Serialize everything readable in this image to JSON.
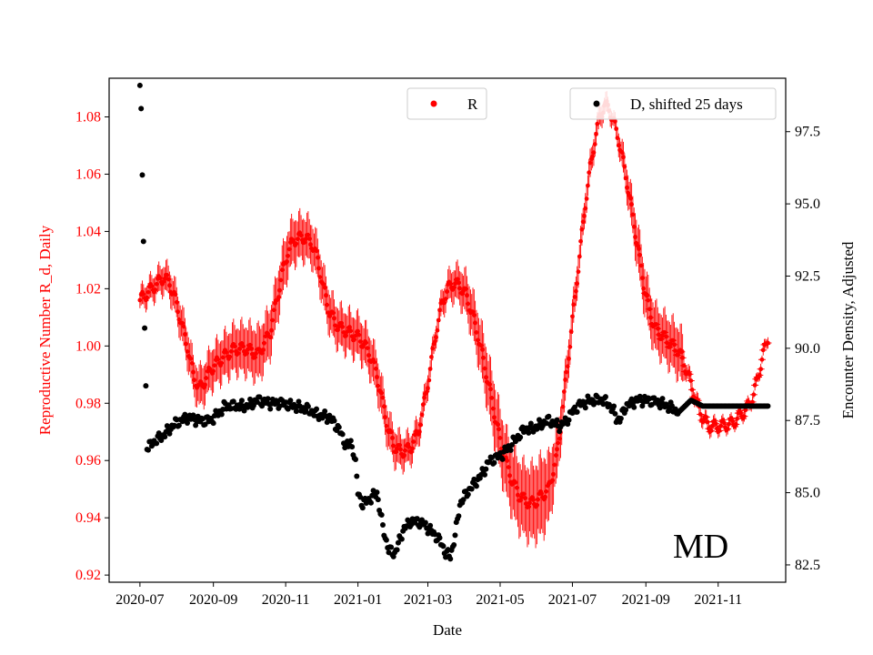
{
  "chart_data": {
    "type": "scatter",
    "title": "",
    "xlabel": "Date",
    "ylabel_left": "Reproductive Number R_d, Daily",
    "ylabel_right": "Encounter Density, Adjusted",
    "annotation": "MD",
    "x_ticks": [
      "2020-07",
      "2020-09",
      "2020-11",
      "2021-01",
      "2021-03",
      "2021-05",
      "2021-07",
      "2021-09",
      "2021-11"
    ],
    "x_tick_days": [
      0,
      62,
      123,
      184,
      243,
      304,
      365,
      427,
      488
    ],
    "x_range_days": [
      -26,
      545
    ],
    "y_left_range": [
      0.9175,
      1.0935
    ],
    "y_left_ticks": [
      "0.92",
      "0.94",
      "0.96",
      "0.98",
      "1.00",
      "1.02",
      "1.04",
      "1.06",
      "1.08"
    ],
    "y_right_range": [
      81.9,
      99.35
    ],
    "y_right_ticks": [
      "82.5",
      "85.0",
      "87.5",
      "90.0",
      "92.5",
      "95.0",
      "97.5"
    ],
    "left_color": "#ff0000",
    "right_color": "#000000",
    "legends": [
      {
        "label": "R",
        "color": "#ff0000",
        "placement": "top-center"
      },
      {
        "label": "D, shifted 25 days",
        "color": "#000000",
        "placement": "top-right"
      }
    ],
    "series": [
      {
        "name": "R",
        "axis": "left",
        "color": "#ff0000",
        "marker": "dot+errorbar",
        "center_knots": [
          [
            0,
            1.016
          ],
          [
            5,
            1.018
          ],
          [
            10,
            1.02
          ],
          [
            15,
            1.022
          ],
          [
            20,
            1.024
          ],
          [
            25,
            1.022
          ],
          [
            30,
            1.016
          ],
          [
            35,
            1.008
          ],
          [
            40,
            1.0
          ],
          [
            45,
            0.99
          ],
          [
            50,
            0.985
          ],
          [
            55,
            0.988
          ],
          [
            60,
            0.992
          ],
          [
            70,
            0.996
          ],
          [
            80,
            0.999
          ],
          [
            90,
            0.999
          ],
          [
            100,
            0.997
          ],
          [
            110,
            1.005
          ],
          [
            115,
            1.015
          ],
          [
            120,
            1.025
          ],
          [
            125,
            1.033
          ],
          [
            130,
            1.037
          ],
          [
            138,
            1.038
          ],
          [
            145,
            1.036
          ],
          [
            150,
            1.03
          ],
          [
            155,
            1.02
          ],
          [
            160,
            1.012
          ],
          [
            165,
            1.008
          ],
          [
            170,
            1.006
          ],
          [
            175,
            1.005
          ],
          [
            180,
            1.004
          ],
          [
            185,
            1.003
          ],
          [
            190,
            1.0
          ],
          [
            195,
            0.996
          ],
          [
            200,
            0.99
          ],
          [
            205,
            0.98
          ],
          [
            210,
            0.97
          ],
          [
            215,
            0.965
          ],
          [
            220,
            0.963
          ],
          [
            228,
            0.964
          ],
          [
            235,
            0.97
          ],
          [
            240,
            0.98
          ],
          [
            245,
            0.992
          ],
          [
            250,
            1.005
          ],
          [
            255,
            1.015
          ],
          [
            260,
            1.02
          ],
          [
            265,
            1.022
          ],
          [
            270,
            1.021
          ],
          [
            275,
            1.018
          ],
          [
            280,
            1.012
          ],
          [
            285,
            1.004
          ],
          [
            290,
            0.995
          ],
          [
            295,
            0.985
          ],
          [
            300,
            0.975
          ],
          [
            305,
            0.965
          ],
          [
            310,
            0.958
          ],
          [
            315,
            0.952
          ],
          [
            320,
            0.948
          ],
          [
            325,
            0.946
          ],
          [
            330,
            0.945
          ],
          [
            335,
            0.946
          ],
          [
            340,
            0.948
          ],
          [
            345,
            0.95
          ],
          [
            348,
            0.955
          ],
          [
            352,
            0.962
          ],
          [
            356,
            0.975
          ],
          [
            360,
            0.99
          ],
          [
            364,
            1.005
          ],
          [
            368,
            1.02
          ],
          [
            372,
            1.035
          ],
          [
            376,
            1.05
          ],
          [
            380,
            1.062
          ],
          [
            384,
            1.072
          ],
          [
            388,
            1.08
          ],
          [
            392,
            1.084
          ],
          [
            396,
            1.083
          ],
          [
            400,
            1.078
          ],
          [
            404,
            1.072
          ],
          [
            408,
            1.064
          ],
          [
            412,
            1.055
          ],
          [
            416,
            1.045
          ],
          [
            420,
            1.035
          ],
          [
            425,
            1.022
          ],
          [
            430,
            1.012
          ],
          [
            435,
            1.006
          ],
          [
            440,
            1.004
          ],
          [
            445,
            1.002
          ],
          [
            450,
            1.0
          ],
          [
            455,
            0.998
          ],
          [
            460,
            0.993
          ],
          [
            465,
            0.987
          ],
          [
            470,
            0.98
          ],
          [
            475,
            0.975
          ],
          [
            480,
            0.972
          ],
          [
            490,
            0.972
          ],
          [
            500,
            0.973
          ],
          [
            505,
            0.975
          ],
          [
            510,
            0.977
          ],
          [
            515,
            0.98
          ],
          [
            518,
            0.983
          ],
          [
            522,
            0.99
          ],
          [
            526,
            0.997
          ],
          [
            530,
            1.003
          ]
        ],
        "halfwidth_knots": [
          [
            0,
            0.004
          ],
          [
            40,
            0.007
          ],
          [
            100,
            0.01
          ],
          [
            150,
            0.008
          ],
          [
            200,
            0.008
          ],
          [
            250,
            0.004
          ],
          [
            300,
            0.012
          ],
          [
            340,
            0.015
          ],
          [
            360,
            0.007
          ],
          [
            400,
            0.003
          ],
          [
            420,
            0.009
          ],
          [
            440,
            0.009
          ],
          [
            458,
            0.01
          ],
          [
            460,
            0.003
          ],
          [
            500,
            0.002
          ],
          [
            530,
            0.002
          ]
        ],
        "weekly_wiggle": 0.004
      },
      {
        "name": "D, shifted 25 days",
        "axis": "right",
        "color": "#000000",
        "marker": "dot",
        "knots": [
          [
            0,
            99.1
          ],
          [
            1,
            98.3
          ],
          [
            2,
            96.0
          ],
          [
            3,
            93.7
          ],
          [
            4,
            90.7
          ],
          [
            5,
            88.7
          ],
          [
            6,
            86.5
          ],
          [
            10,
            86.7
          ],
          [
            20,
            87.0
          ],
          [
            30,
            87.4
          ],
          [
            40,
            87.6
          ],
          [
            50,
            87.5
          ],
          [
            60,
            87.5
          ],
          [
            65,
            87.7
          ],
          [
            72,
            88.0
          ],
          [
            80,
            88.0
          ],
          [
            90,
            88.0
          ],
          [
            100,
            88.2
          ],
          [
            110,
            88.1
          ],
          [
            120,
            88.1
          ],
          [
            130,
            88.0
          ],
          [
            140,
            87.9
          ],
          [
            150,
            87.7
          ],
          [
            160,
            87.6
          ],
          [
            168,
            87.2
          ],
          [
            172,
            86.8
          ],
          [
            176,
            86.6
          ],
          [
            178,
            86.7
          ],
          [
            180,
            86.5
          ],
          [
            182,
            86.0
          ],
          [
            184,
            85.0
          ],
          [
            188,
            84.6
          ],
          [
            195,
            84.8
          ],
          [
            200,
            85.0
          ],
          [
            205,
            83.8
          ],
          [
            210,
            83.0
          ],
          [
            215,
            82.9
          ],
          [
            218,
            83.2
          ],
          [
            222,
            83.7
          ],
          [
            228,
            84.0
          ],
          [
            235,
            84.0
          ],
          [
            240,
            83.9
          ],
          [
            245,
            83.7
          ],
          [
            250,
            83.5
          ],
          [
            255,
            83.2
          ],
          [
            258,
            82.9
          ],
          [
            262,
            82.8
          ],
          [
            266,
            83.5
          ],
          [
            270,
            84.6
          ],
          [
            276,
            85.0
          ],
          [
            282,
            85.3
          ],
          [
            288,
            85.6
          ],
          [
            295,
            86.1
          ],
          [
            300,
            86.2
          ],
          [
            305,
            86.3
          ],
          [
            310,
            86.5
          ],
          [
            318,
            86.9
          ],
          [
            325,
            87.2
          ],
          [
            330,
            87.2
          ],
          [
            335,
            87.3
          ],
          [
            340,
            87.4
          ],
          [
            345,
            87.5
          ],
          [
            350,
            87.4
          ],
          [
            355,
            87.3
          ],
          [
            360,
            87.5
          ],
          [
            365,
            87.8
          ],
          [
            370,
            88.0
          ],
          [
            375,
            88.1
          ],
          [
            380,
            88.2
          ],
          [
            385,
            88.2
          ],
          [
            390,
            88.2
          ],
          [
            395,
            88.1
          ],
          [
            400,
            87.8
          ],
          [
            402,
            87.6
          ],
          [
            405,
            87.5
          ],
          [
            410,
            88.0
          ],
          [
            415,
            88.1
          ],
          [
            420,
            88.2
          ],
          [
            430,
            88.2
          ],
          [
            440,
            88.1
          ],
          [
            445,
            88.0
          ],
          [
            450,
            87.9
          ],
          [
            455,
            87.8
          ],
          [
            460,
            88.0
          ],
          [
            465,
            88.2
          ],
          [
            470,
            88.1
          ],
          [
            475,
            88.0
          ],
          [
            480,
            88.0
          ],
          [
            490,
            88.0
          ],
          [
            500,
            88.0
          ],
          [
            510,
            88.0
          ],
          [
            520,
            88.0
          ],
          [
            530,
            88.0
          ]
        ]
      }
    ]
  }
}
